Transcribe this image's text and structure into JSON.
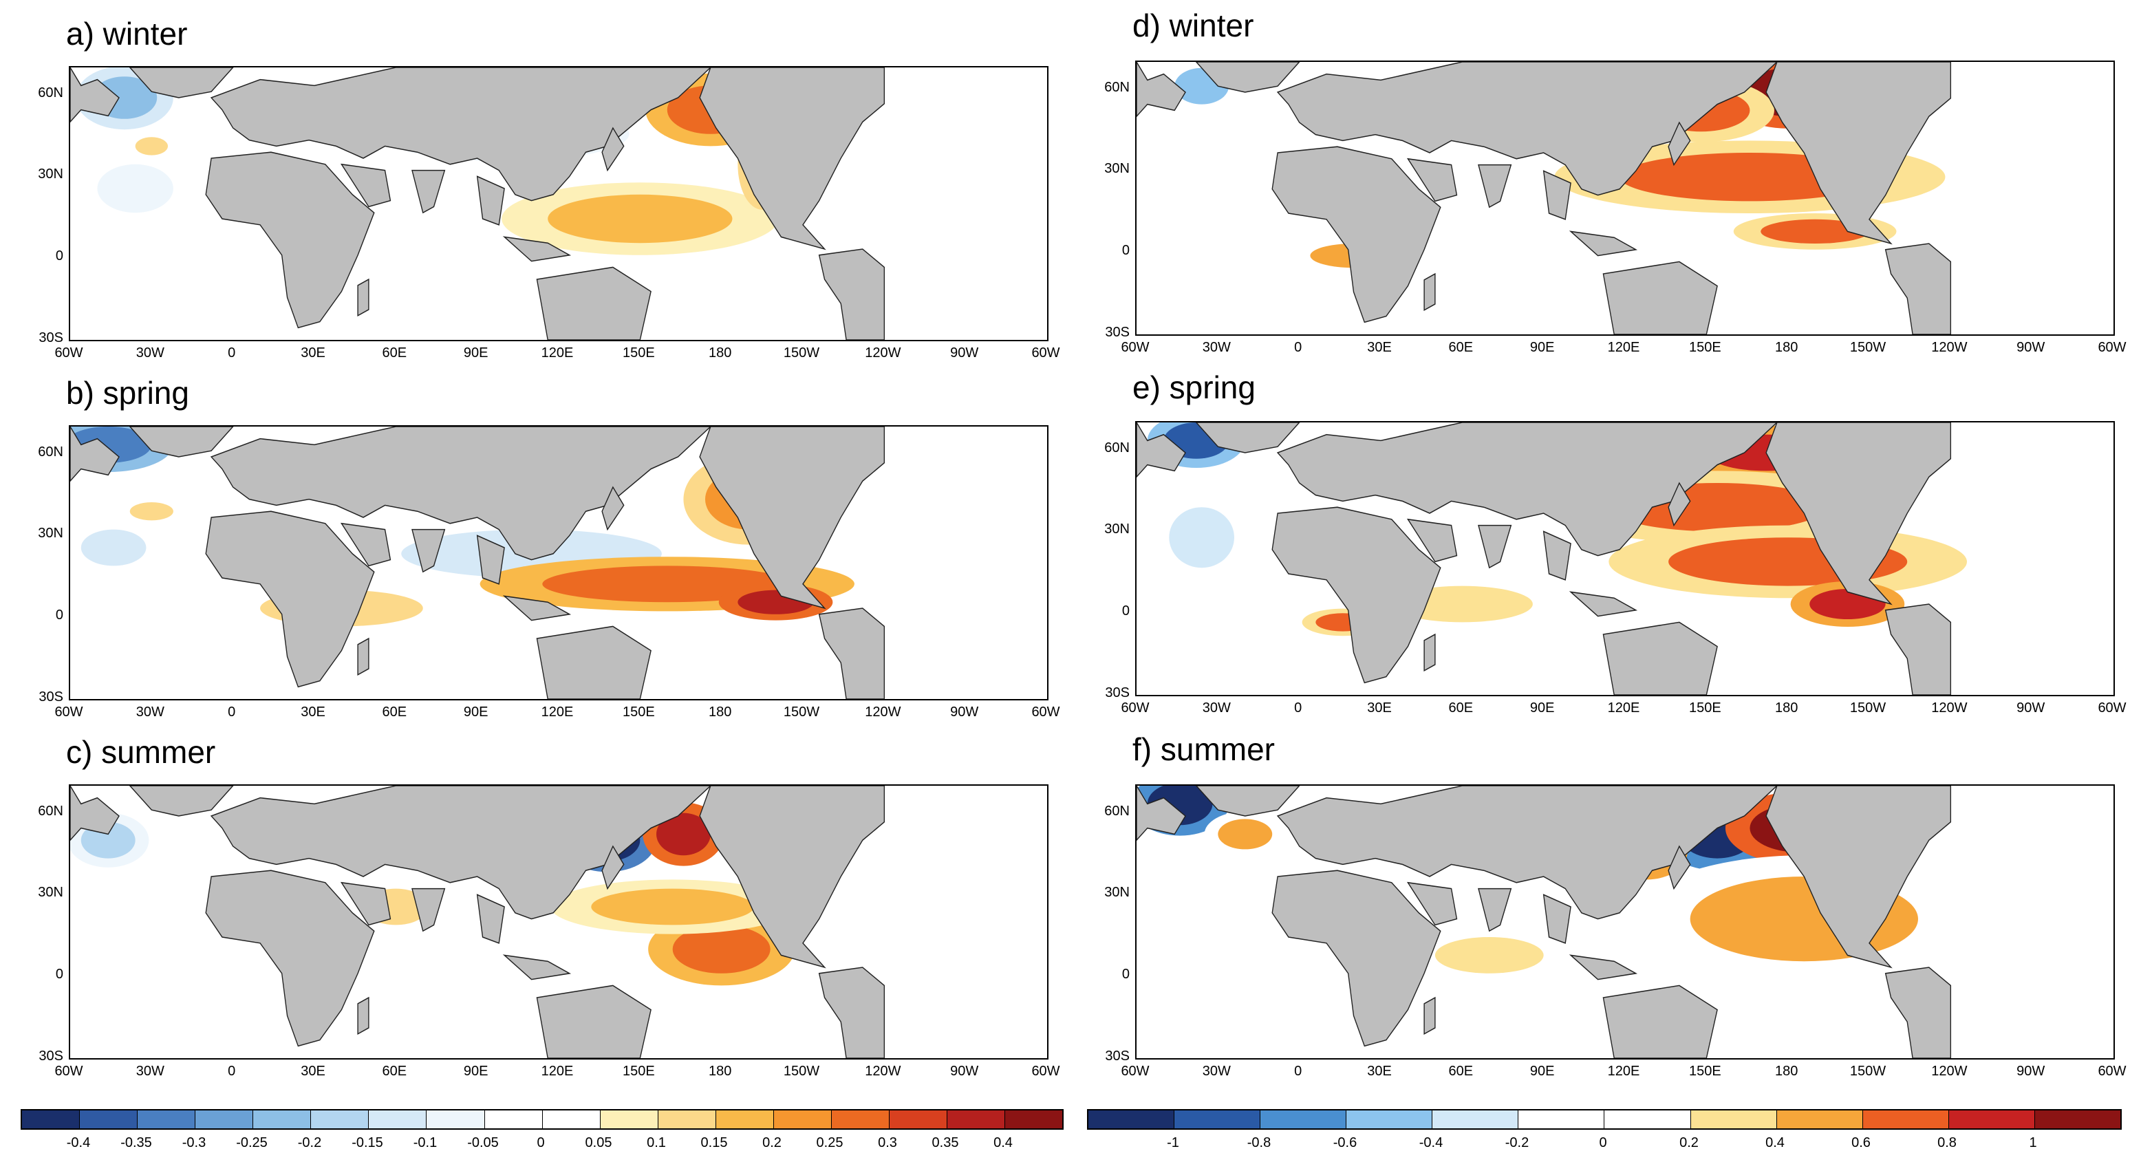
{
  "panels": [
    {
      "id": "a",
      "title": "a) winter",
      "scheme": "left",
      "season": "winter"
    },
    {
      "id": "b",
      "title": "b) spring",
      "scheme": "left",
      "season": "spring"
    },
    {
      "id": "c",
      "title": "c) summer",
      "scheme": "left",
      "season": "summer"
    },
    {
      "id": "d",
      "title": "d) winter",
      "scheme": "right",
      "season": "winter"
    },
    {
      "id": "e",
      "title": "e) spring",
      "scheme": "right",
      "season": "spring"
    },
    {
      "id": "f",
      "title": "f) summer",
      "scheme": "right",
      "season": "summer"
    }
  ],
  "lat_labels": [
    "60N",
    "30N",
    "0",
    "30S"
  ],
  "lon_labels": [
    "60W",
    "30W",
    "0",
    "30E",
    "60E",
    "90E",
    "120E",
    "150E",
    "180",
    "150W",
    "120W",
    "90W",
    "60W"
  ],
  "colorbars": {
    "left": {
      "labels": [
        "-0.4",
        "-0.35",
        "-0.3",
        "-0.25",
        "-0.2",
        "-0.15",
        "-0.1",
        "-0.05",
        "0",
        "0.05",
        "0.1",
        "0.15",
        "0.2",
        "0.25",
        "0.3",
        "0.35",
        "0.4"
      ],
      "colors": [
        "#1a2f6b",
        "#2f5aa3",
        "#4a7fc1",
        "#6aa1d6",
        "#8dbfe6",
        "#b3d6f0",
        "#d6e9f7",
        "#eef6fc",
        "#ffffff",
        "#ffffff",
        "#fdf0b8",
        "#fcd98a",
        "#f9b949",
        "#f5962f",
        "#ec6a22",
        "#d8401f",
        "#b5201e",
        "#8b1414"
      ]
    },
    "right": {
      "labels": [
        "-1",
        "-0.8",
        "-0.6",
        "-0.4",
        "-0.2",
        "0",
        "0.2",
        "0.4",
        "0.6",
        "0.8",
        "1"
      ],
      "colors": [
        "#1a2f6b",
        "#2a5aa6",
        "#4a8fd0",
        "#8cc4ee",
        "#d3e9f8",
        "#ffffff",
        "#ffffff",
        "#fce294",
        "#f6a63a",
        "#ec5f23",
        "#c72222",
        "#8b1414"
      ]
    }
  }
}
